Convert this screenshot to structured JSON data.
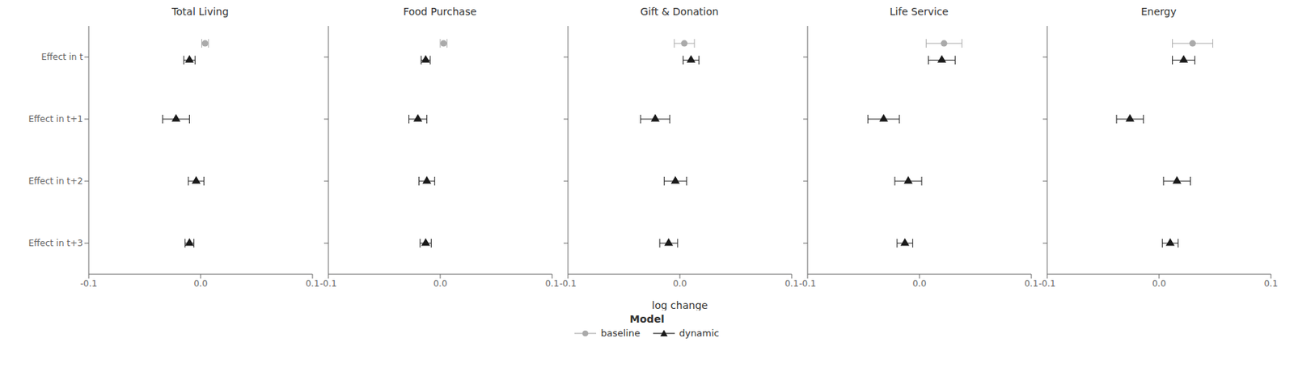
{
  "chart_data": [
    {
      "type": "scatter",
      "title": "Total Living",
      "categories": [
        "Effect in t",
        "Effect in t+1",
        "Effect in t+2",
        "Effect in t+3"
      ],
      "xlim": [
        -0.1,
        0.1
      ],
      "xticks": [
        -0.1,
        {
          "value": 0.0,
          "label": "0.0"
        },
        0.1
      ],
      "series": [
        {
          "name": "baseline",
          "color": "#aaaaaa",
          "marker": "circle",
          "values": [
            0.004,
            null,
            null,
            null
          ],
          "errors": [
            [
              0.003,
              0.003
            ],
            null,
            null,
            null
          ]
        },
        {
          "name": "dynamic",
          "color": "#1a1a1a",
          "marker": "triangle",
          "values": [
            -0.01,
            -0.022,
            -0.004,
            -0.01
          ],
          "errors": [
            [
              0.005,
              0.005
            ],
            [
              0.012,
              0.012
            ],
            [
              0.007,
              0.007
            ],
            [
              0.004,
              0.004
            ]
          ]
        }
      ]
    },
    {
      "type": "scatter",
      "title": "Food Purchase",
      "tick_labels": "x",
      "categories": [
        "Effect in t",
        "Effect in t+1",
        "Effect in t+2",
        "Effect in t+3"
      ],
      "xlim": [
        -0.1,
        0.1
      ],
      "xticks": [
        -0.1,
        {
          "value": 0.0,
          "label": "0.0"
        },
        0.1
      ],
      "series": [
        {
          "name": "baseline",
          "color": "#aaaaaa",
          "marker": "circle",
          "values": [
            0.003,
            null,
            null,
            null
          ],
          "errors": [
            [
              0.003,
              0.003
            ],
            null,
            null,
            null
          ]
        },
        {
          "name": "dynamic",
          "color": "#1a1a1a",
          "marker": "triangle",
          "values": [
            -0.013,
            -0.02,
            -0.012,
            -0.013
          ],
          "errors": [
            [
              0.004,
              0.004
            ],
            [
              0.008,
              0.008
            ],
            [
              0.007,
              0.007
            ],
            [
              0.005,
              0.005
            ]
          ]
        }
      ]
    },
    {
      "type": "scatter",
      "title": "Gift & Donation",
      "tick_labels": "x",
      "xlabel": "log change",
      "legend": "bottom",
      "legend_title": "Model",
      "categories": [
        "Effect in t",
        "Effect in t+1",
        "Effect in t+2",
        "Effect in t+3"
      ],
      "xlim": [
        -0.1,
        0.1
      ],
      "xticks": [
        -0.1,
        {
          "value": 0.0,
          "label": "0.0"
        },
        0.1
      ],
      "series": [
        {
          "name": "baseline",
          "color": "#aaaaaa",
          "marker": "circle",
          "values": [
            0.004,
            null,
            null,
            null
          ],
          "errors": [
            [
              0.009,
              0.009
            ],
            null,
            null,
            null
          ]
        },
        {
          "name": "dynamic",
          "color": "#1a1a1a",
          "marker": "triangle",
          "values": [
            0.01,
            -0.022,
            -0.004,
            -0.01
          ],
          "errors": [
            [
              0.007,
              0.007
            ],
            [
              0.013,
              0.013
            ],
            [
              0.01,
              0.01
            ],
            [
              0.008,
              0.008
            ]
          ]
        }
      ]
    },
    {
      "type": "scatter",
      "title": "Life Service",
      "tick_labels": "x",
      "categories": [
        "Effect in t",
        "Effect in t+1",
        "Effect in t+2",
        "Effect in t+3"
      ],
      "xlim": [
        -0.1,
        0.1
      ],
      "xticks": [
        -0.1,
        {
          "value": 0.0,
          "label": "0.0"
        },
        0.1
      ],
      "series": [
        {
          "name": "baseline",
          "color": "#aaaaaa",
          "marker": "circle",
          "values": [
            0.022,
            null,
            null,
            null
          ],
          "errors": [
            [
              0.016,
              0.016
            ],
            null,
            null,
            null
          ]
        },
        {
          "name": "dynamic",
          "color": "#1a1a1a",
          "marker": "triangle",
          "values": [
            0.02,
            -0.032,
            -0.01,
            -0.013
          ],
          "errors": [
            [
              0.012,
              0.012
            ],
            [
              0.014,
              0.014
            ],
            [
              0.012,
              0.012
            ],
            [
              0.007,
              0.007
            ]
          ]
        }
      ]
    },
    {
      "type": "scatter",
      "title": "Energy",
      "tick_labels": "x",
      "categories": [
        "Effect in t",
        "Effect in t+1",
        "Effect in t+2",
        "Effect in t+3"
      ],
      "xlim": [
        -0.1,
        0.1
      ],
      "xticks": [
        -0.1,
        {
          "value": 0.0,
          "label": "0.0"
        },
        0.1
      ],
      "series": [
        {
          "name": "baseline",
          "color": "#aaaaaa",
          "marker": "circle",
          "values": [
            0.03,
            null,
            null,
            null
          ],
          "errors": [
            [
              0.018,
              0.018
            ],
            null,
            null,
            null
          ]
        },
        {
          "name": "dynamic",
          "color": "#1a1a1a",
          "marker": "triangle",
          "values": [
            0.022,
            -0.026,
            0.016,
            0.01
          ],
          "errors": [
            [
              0.01,
              0.01
            ],
            [
              0.012,
              0.012
            ],
            [
              0.012,
              0.012
            ],
            [
              0.007,
              0.007
            ]
          ]
        }
      ]
    }
  ]
}
